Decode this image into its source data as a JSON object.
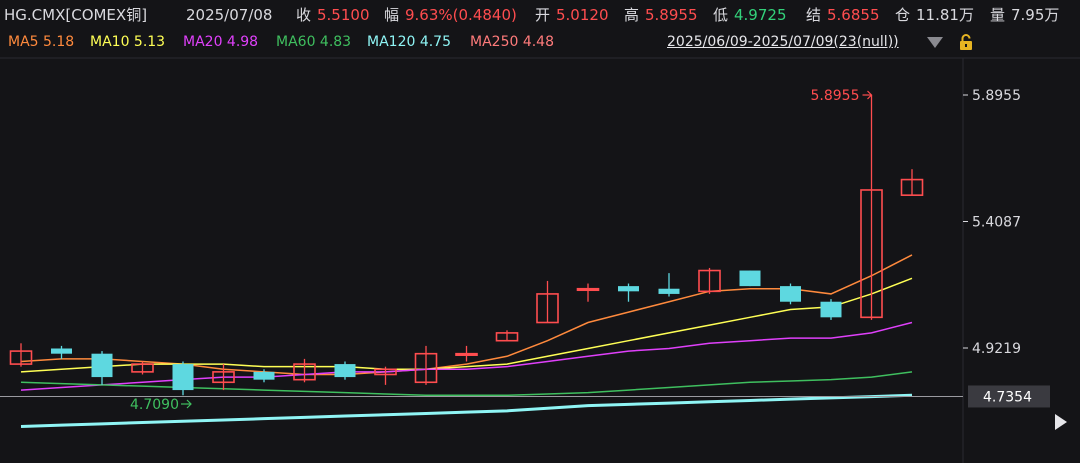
{
  "quote": {
    "symbol": "HG.CMX[COMEX铜]",
    "date": "2025/07/08",
    "close_label": "收",
    "close_value": "5.5100",
    "change_label": "幅",
    "change_value": "9.63%(0.4840)",
    "open_label": "开",
    "open_value": "5.0120",
    "high_label": "高",
    "high_value": "5.8955",
    "low_label": "低",
    "low_value": "4.9725",
    "settle_label": "结",
    "settle_value": "5.6855",
    "oi_label": "仓",
    "oi_value": "11.81万",
    "vol_label": "量",
    "vol_value": "7.95万"
  },
  "ma_legend": [
    {
      "label": "MA5 5.18",
      "color": "#ff8a3d"
    },
    {
      "label": "MA10 5.13",
      "color": "#ffff55"
    },
    {
      "label": "MA20 4.98",
      "color": "#e040fb"
    },
    {
      "label": "MA60 4.83",
      "color": "#3fbf5f"
    },
    {
      "label": "MA120 4.75",
      "color": "#8ff5f5"
    },
    {
      "label": "MA250 4.48",
      "color": "#ff7b7b"
    }
  ],
  "range_label": "2025/06/09-2025/07/09(23(null))",
  "colors": {
    "up": "#ff4d4f",
    "down": "#5ed8e0",
    "background": "#141417",
    "grid": "#2a2a30",
    "axis_text": "#d9d9de",
    "price_line": "#9a9aa0"
  },
  "chart_data": {
    "type": "candlestick",
    "y_ticks": [
      "5.8955",
      "5.4087",
      "4.9219"
    ],
    "ylim": [
      4.55,
      6.0
    ],
    "current_price_label": "4.7354",
    "high_annotation": "5.8955",
    "low_annotation": "4.7090",
    "candles": [
      {
        "o": 4.86,
        "c": 4.91,
        "h": 4.94,
        "l": 4.85,
        "dir": "up"
      },
      {
        "o": 4.92,
        "c": 4.9,
        "h": 4.93,
        "l": 4.88,
        "dir": "down"
      },
      {
        "o": 4.9,
        "c": 4.81,
        "h": 4.91,
        "l": 4.78,
        "dir": "down"
      },
      {
        "o": 4.83,
        "c": 4.86,
        "h": 4.87,
        "l": 4.82,
        "dir": "up"
      },
      {
        "o": 4.86,
        "c": 4.76,
        "h": 4.87,
        "l": 4.74,
        "dir": "down"
      },
      {
        "o": 4.79,
        "c": 4.83,
        "h": 4.86,
        "l": 4.76,
        "dir": "up"
      },
      {
        "o": 4.83,
        "c": 4.8,
        "h": 4.84,
        "l": 4.79,
        "dir": "down"
      },
      {
        "o": 4.8,
        "c": 4.86,
        "h": 4.88,
        "l": 4.79,
        "dir": "up"
      },
      {
        "o": 4.86,
        "c": 4.81,
        "h": 4.87,
        "l": 4.8,
        "dir": "down"
      },
      {
        "o": 4.82,
        "c": 4.84,
        "h": 4.85,
        "l": 4.78,
        "dir": "up"
      },
      {
        "o": 4.79,
        "c": 4.9,
        "h": 4.93,
        "l": 4.78,
        "dir": "up"
      },
      {
        "o": 4.9,
        "c": 4.9,
        "h": 4.93,
        "l": 4.87,
        "dir": "up"
      },
      {
        "o": 4.95,
        "c": 4.98,
        "h": 4.99,
        "l": 4.95,
        "dir": "up"
      },
      {
        "o": 5.02,
        "c": 5.13,
        "h": 5.18,
        "l": 5.02,
        "dir": "up"
      },
      {
        "o": 5.15,
        "c": 5.15,
        "h": 5.17,
        "l": 5.1,
        "dir": "up"
      },
      {
        "o": 5.16,
        "c": 5.14,
        "h": 5.17,
        "l": 5.1,
        "dir": "down"
      },
      {
        "o": 5.15,
        "c": 5.13,
        "h": 5.21,
        "l": 5.12,
        "dir": "down"
      },
      {
        "o": 5.14,
        "c": 5.22,
        "h": 5.23,
        "l": 5.13,
        "dir": "up"
      },
      {
        "o": 5.22,
        "c": 5.16,
        "h": 5.22,
        "l": 5.16,
        "dir": "down"
      },
      {
        "o": 5.16,
        "c": 5.1,
        "h": 5.17,
        "l": 5.09,
        "dir": "down"
      },
      {
        "o": 5.1,
        "c": 5.04,
        "h": 5.11,
        "l": 5.03,
        "dir": "down"
      },
      {
        "o": 5.04,
        "c": 5.53,
        "h": 5.8955,
        "l": 5.03,
        "dir": "up"
      },
      {
        "o": 5.51,
        "c": 5.57,
        "h": 5.61,
        "l": 5.51,
        "dir": "up"
      }
    ],
    "series": [
      {
        "name": "MA5",
        "color": "#ff8a3d",
        "values": [
          4.87,
          4.88,
          4.88,
          4.87,
          4.86,
          4.84,
          4.83,
          4.82,
          4.82,
          4.83,
          4.84,
          4.86,
          4.89,
          4.95,
          5.02,
          5.06,
          5.1,
          5.14,
          5.15,
          5.15,
          5.13,
          5.2,
          5.28
        ]
      },
      {
        "name": "MA10",
        "color": "#ffff55",
        "values": [
          4.83,
          4.84,
          4.85,
          4.86,
          4.86,
          4.86,
          4.85,
          4.85,
          4.85,
          4.84,
          4.84,
          4.85,
          4.86,
          4.89,
          4.92,
          4.95,
          4.98,
          5.01,
          5.04,
          5.07,
          5.08,
          5.13,
          5.19
        ]
      },
      {
        "name": "MA20",
        "color": "#e040fb",
        "values": [
          4.76,
          4.77,
          4.78,
          4.79,
          4.8,
          4.81,
          4.81,
          4.82,
          4.83,
          4.83,
          4.84,
          4.84,
          4.85,
          4.87,
          4.89,
          4.91,
          4.92,
          4.94,
          4.95,
          4.96,
          4.96,
          4.98,
          5.02
        ]
      },
      {
        "name": "MA60",
        "color": "#3fbf5f",
        "values": [
          4.79,
          4.785,
          4.78,
          4.775,
          4.77,
          4.765,
          4.76,
          4.755,
          4.75,
          4.745,
          4.74,
          4.74,
          4.74,
          4.745,
          4.75,
          4.76,
          4.77,
          4.78,
          4.79,
          4.795,
          4.8,
          4.81,
          4.83
        ]
      },
      {
        "name": "MA120",
        "color": "#8ff5f5",
        "values": [
          4.62,
          4.625,
          4.63,
          4.635,
          4.64,
          4.645,
          4.65,
          4.655,
          4.66,
          4.665,
          4.67,
          4.675,
          4.68,
          4.69,
          4.7,
          4.705,
          4.71,
          4.715,
          4.72,
          4.725,
          4.73,
          4.735,
          4.74
        ]
      }
    ]
  }
}
